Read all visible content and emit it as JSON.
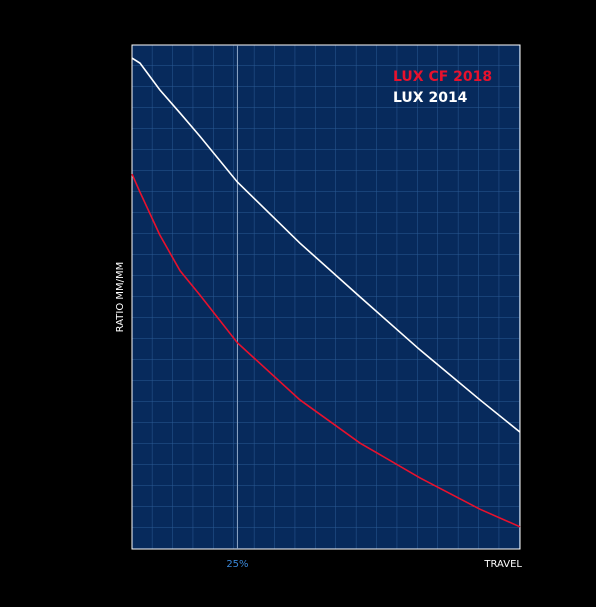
{
  "chart_data": {
    "type": "line",
    "xlabel": "TRAVEL",
    "ylabel": "RATIO MM/MM",
    "x": [
      0,
      1.9,
      6.6,
      11.4,
      16.1,
      25,
      39.8,
      54.1,
      68.3,
      82.5,
      92
    ],
    "series": [
      {
        "name": "LUX CF 2018",
        "color": "#e8112d",
        "values": [
          74.4,
          70.8,
          62.3,
          55.2,
          50.4,
          40.9,
          29.6,
          21.0,
          14.1,
          7.9,
          4.4
        ]
      },
      {
        "name": "LUX 2014",
        "color": "#ffffff",
        "values": [
          97.4,
          96.4,
          91.1,
          86.5,
          81.9,
          72.8,
          60.7,
          50.0,
          39.5,
          29.6,
          23.2
        ]
      }
    ],
    "xlim": [
      0,
      92
    ],
    "ylim": [
      0,
      100
    ],
    "xticks": [
      {
        "value": 25,
        "label": "25%"
      }
    ],
    "grid": true,
    "legend": "top-right"
  }
}
